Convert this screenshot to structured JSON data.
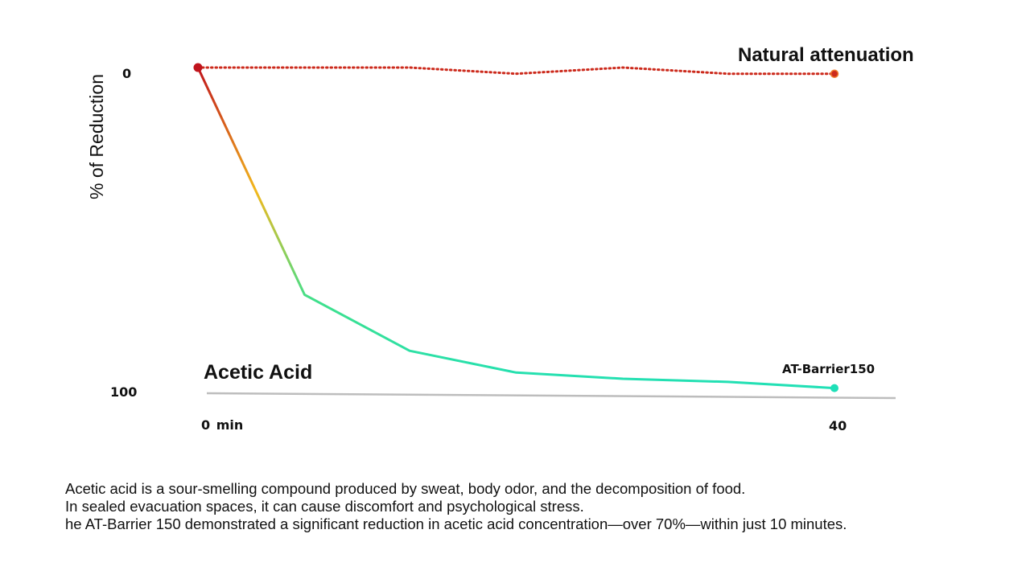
{
  "chart_data": {
    "type": "line",
    "title": "Acetic Acid",
    "ylabel": "% of Reduction",
    "xlabel": "",
    "x_tick_labels": [
      {
        "x": 0,
        "label_num": "0",
        "label_unit": "min"
      },
      {
        "x": 40,
        "label_num": "40",
        "label_unit": ""
      }
    ],
    "y_tick_labels": [
      {
        "y": 0,
        "label": "0"
      },
      {
        "y": 100,
        "label": "100"
      }
    ],
    "xlim": [
      0,
      40
    ],
    "ylim": [
      0,
      100
    ],
    "y_inverted": true,
    "grid": false,
    "series": [
      {
        "name": "Natural attenuation",
        "style": "dotted",
        "color": "#cc2a1c",
        "x": [
          0,
          6.7,
          13.3,
          20,
          26.7,
          33.3,
          40
        ],
        "y": [
          0,
          0,
          0,
          2,
          0,
          2,
          2
        ]
      },
      {
        "name": "AT-Barrier150",
        "style": "solid-gradient",
        "color_start": "#c0141c",
        "color_mid": "#f2b81c",
        "color_end": "#1fe0b8",
        "x": [
          0,
          6.7,
          13.3,
          20,
          26.7,
          33.3,
          40
        ],
        "y": [
          0,
          73,
          91,
          98,
          100,
          101,
          103
        ]
      }
    ]
  },
  "caption": {
    "lines": [
      "Acetic acid is a sour-smelling compound produced by sweat, body odor, and the decomposition of food.",
      "In sealed evacuation spaces, it can cause discomfort and psychological stress.",
      "he AT-Barrier 150 demonstrated a significant reduction in acetic acid concentration—over 70%—within just 10 minutes."
    ]
  }
}
